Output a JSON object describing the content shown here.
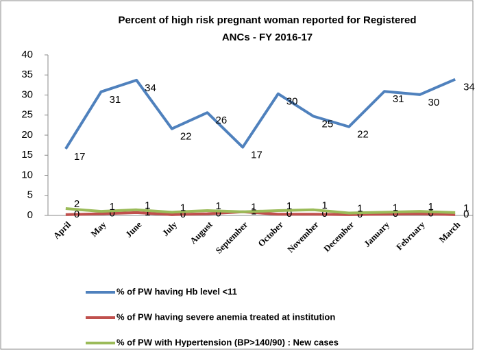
{
  "chart_data": {
    "type": "line",
    "title": [
      "Percent of high risk pregnant woman reported for Registered",
      "ANCs - FY 2016-17"
    ],
    "categories": [
      "April",
      "May",
      "June",
      "July",
      "August",
      "September",
      "October",
      "November",
      "December",
      "January",
      "February",
      "March"
    ],
    "series": [
      {
        "name": "% of PW having Hb level <11",
        "color": "#4f81bd",
        "values": [
          16.6,
          30.8,
          33.7,
          21.6,
          25.6,
          17,
          30.3,
          24.7,
          22.1,
          30.9,
          30.1,
          33.9
        ],
        "value_labels": [
          "17",
          "31",
          "34",
          "22",
          "26",
          "17",
          "30",
          "25",
          "22",
          "31",
          "30",
          "34"
        ]
      },
      {
        "name": "% of PW having severe anemia treated at institution",
        "color": "#c0504d",
        "values": [
          0.2,
          0.4,
          0.7,
          0.2,
          0.4,
          0.9,
          0.3,
          0.3,
          0.2,
          0.3,
          0.4,
          0.2
        ],
        "value_labels": [
          "0",
          "0",
          "1",
          "0",
          "0",
          "1",
          "0",
          "0",
          "0",
          "0",
          "0",
          "0"
        ]
      },
      {
        "name": "% of PW with Hypertension (BP>140/90) : New cases",
        "color": "#9bbb59",
        "values": [
          1.7,
          1.0,
          1.4,
          0.8,
          1.2,
          0.9,
          1.2,
          1.4,
          0.6,
          0.8,
          1.0,
          0.7
        ],
        "value_labels": [
          "2",
          "1",
          "1",
          "1",
          "1",
          "1",
          "1",
          "1",
          "1",
          "1",
          "1",
          "1"
        ]
      }
    ],
    "ylim": [
      0,
      40
    ],
    "yticks": [
      0,
      5,
      10,
      15,
      20,
      25,
      30,
      35,
      40
    ],
    "grid": false,
    "legend": "bottom"
  }
}
